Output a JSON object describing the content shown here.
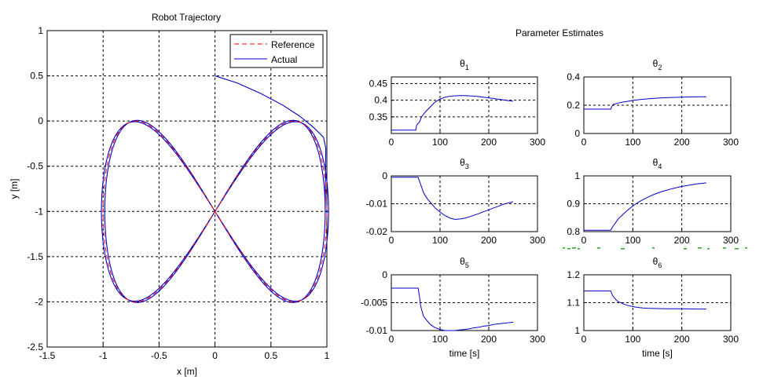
{
  "main_title": "Robot Trajectory",
  "params_title": "Parameter Estimates",
  "colors": {
    "reference": "#ff0000",
    "actual": "#0000cc",
    "axes": "#000000",
    "grid": "#000000",
    "speckle": "#22aa22"
  },
  "chart_data": [
    {
      "id": "trajectory",
      "type": "line",
      "title": "Robot Trajectory",
      "xlabel": "x [m]",
      "ylabel": "y [m]",
      "xlim": [
        -1.5,
        1
      ],
      "ylim": [
        -2.5,
        1
      ],
      "xticks": [
        -1.5,
        -1,
        -0.5,
        0,
        0.5,
        1
      ],
      "xtick_labels": [
        "-1.5",
        "-1",
        "-0.5",
        "0",
        "0.5",
        "1"
      ],
      "yticks": [
        -2.5,
        -2,
        -1.5,
        -1,
        -0.5,
        0,
        0.5,
        1
      ],
      "ytick_labels": [
        "-2.5",
        "-2",
        "-1.5",
        "-1",
        "-0.5",
        "0",
        "0.5",
        "1"
      ],
      "grid": true,
      "legend": {
        "position": "top-right",
        "entries": [
          "Reference",
          "Actual"
        ]
      },
      "series": [
        {
          "name": "Reference",
          "style": "dashed",
          "shape": "figure-eight centered at (0,-1), x amplitude 1, y amplitude 1"
        },
        {
          "name": "Actual",
          "style": "solid",
          "start": [
            0,
            0.5
          ],
          "shape": "converges onto the reference figure-eight near (1,-0.2)"
        }
      ]
    },
    {
      "id": "theta1",
      "title": "θ",
      "title_sub": "1",
      "type": "line",
      "xlim": [
        0,
        300
      ],
      "ylim": [
        0.3,
        0.47
      ],
      "xticks": [
        0,
        100,
        200,
        300
      ],
      "xtick_labels": [
        "0",
        "100",
        "200",
        "300"
      ],
      "yticks": [
        0.35,
        0.4,
        0.45
      ],
      "ytick_labels": [
        "0.35",
        "0.4",
        "0.45"
      ],
      "xlabel": "",
      "series": [
        {
          "x": [
            0,
            50,
            52,
            58,
            62,
            70,
            80,
            90,
            100,
            110,
            120,
            130,
            140,
            150,
            160,
            170,
            180,
            190,
            200,
            220,
            240,
            250
          ],
          "y": [
            0.31,
            0.31,
            0.325,
            0.335,
            0.35,
            0.365,
            0.38,
            0.395,
            0.403,
            0.409,
            0.412,
            0.413,
            0.414,
            0.414,
            0.413,
            0.412,
            0.411,
            0.409,
            0.407,
            0.403,
            0.399,
            0.397
          ]
        }
      ]
    },
    {
      "id": "theta2",
      "title": "θ",
      "title_sub": "2",
      "type": "line",
      "xlim": [
        0,
        300
      ],
      "ylim": [
        0,
        0.4
      ],
      "xticks": [
        0,
        100,
        200,
        300
      ],
      "xtick_labels": [
        "0",
        "100",
        "200",
        "300"
      ],
      "yticks": [
        0,
        0.2,
        0.4
      ],
      "ytick_labels": [
        "0",
        "0.2",
        "0.4"
      ],
      "xlabel": "",
      "series": [
        {
          "x": [
            0,
            55,
            57,
            60,
            70,
            80,
            90,
            100,
            120,
            140,
            160,
            180,
            200,
            220,
            250
          ],
          "y": [
            0.172,
            0.172,
            0.19,
            0.205,
            0.215,
            0.222,
            0.228,
            0.234,
            0.242,
            0.248,
            0.252,
            0.255,
            0.257,
            0.259,
            0.26
          ]
        }
      ]
    },
    {
      "id": "theta3",
      "title": "θ",
      "title_sub": "3",
      "type": "line",
      "xlim": [
        0,
        300
      ],
      "ylim": [
        -0.02,
        0
      ],
      "xticks": [
        0,
        100,
        200,
        300
      ],
      "xtick_labels": [
        "0",
        "100",
        "200",
        "300"
      ],
      "yticks": [
        -0.02,
        -0.01,
        0
      ],
      "ytick_labels": [
        "-0.02",
        "-0.01",
        "0"
      ],
      "xlabel": "",
      "series": [
        {
          "x": [
            0,
            55,
            58,
            62,
            66,
            70,
            75,
            80,
            90,
            100,
            110,
            120,
            130,
            140,
            150,
            160,
            170,
            180,
            190,
            200,
            210,
            220,
            230,
            240,
            250
          ],
          "y": [
            -0.0005,
            -0.0005,
            -0.002,
            -0.004,
            -0.006,
            -0.0072,
            -0.0085,
            -0.0095,
            -0.0115,
            -0.013,
            -0.0142,
            -0.0151,
            -0.0156,
            -0.0155,
            -0.0152,
            -0.0147,
            -0.0141,
            -0.0135,
            -0.0128,
            -0.0122,
            -0.0115,
            -0.0109,
            -0.0102,
            -0.0097,
            -0.0093
          ]
        }
      ]
    },
    {
      "id": "theta4",
      "title": "θ",
      "title_sub": "4",
      "type": "line",
      "xlim": [
        0,
        300
      ],
      "ylim": [
        0.8,
        1
      ],
      "xticks": [
        0,
        100,
        200,
        300
      ],
      "xtick_labels": [
        "0",
        "100",
        "200",
        "300"
      ],
      "yticks": [
        0.8,
        0.9,
        1
      ],
      "ytick_labels": [
        "0.8",
        "0.9",
        "1"
      ],
      "xlabel": "",
      "series": [
        {
          "x": [
            0,
            55,
            58,
            62,
            66,
            70,
            80,
            90,
            100,
            110,
            120,
            130,
            140,
            150,
            160,
            170,
            180,
            190,
            200,
            210,
            220,
            230,
            240,
            250
          ],
          "y": [
            0.805,
            0.805,
            0.815,
            0.825,
            0.835,
            0.845,
            0.862,
            0.878,
            0.892,
            0.904,
            0.914,
            0.923,
            0.931,
            0.938,
            0.944,
            0.949,
            0.954,
            0.958,
            0.962,
            0.965,
            0.968,
            0.971,
            0.973,
            0.975
          ]
        }
      ]
    },
    {
      "id": "theta5",
      "title": "θ",
      "title_sub": "5",
      "type": "line",
      "xlim": [
        0,
        300
      ],
      "ylim": [
        -0.01,
        0
      ],
      "xticks": [
        0,
        100,
        200,
        300
      ],
      "xtick_labels": [
        "0",
        "100",
        "200",
        "300"
      ],
      "yticks": [
        -0.01,
        -0.005,
        0
      ],
      "ytick_labels": [
        "-0.01",
        "-0.005",
        "0"
      ],
      "xlabel": "time [s]",
      "series": [
        {
          "x": [
            0,
            55,
            58,
            60,
            63,
            66,
            70,
            75,
            80,
            90,
            100,
            110,
            120,
            130,
            140,
            150,
            160,
            170,
            180,
            190,
            200,
            210,
            220,
            230,
            240,
            250
          ],
          "y": [
            -0.0024,
            -0.0024,
            -0.004,
            -0.0055,
            -0.0065,
            -0.0074,
            -0.0079,
            -0.0084,
            -0.0089,
            -0.0095,
            -0.0098,
            -0.01,
            -0.01,
            -0.01,
            -0.0099,
            -0.0098,
            -0.0097,
            -0.0095,
            -0.0094,
            -0.0092,
            -0.0091,
            -0.0089,
            -0.0088,
            -0.0087,
            -0.0086,
            -0.0085
          ]
        }
      ]
    },
    {
      "id": "theta6",
      "title": "θ",
      "title_sub": "6",
      "type": "line",
      "xlim": [
        0,
        300
      ],
      "ylim": [
        1,
        1.2
      ],
      "xticks": [
        0,
        100,
        200,
        300
      ],
      "xtick_labels": [
        "0",
        "100",
        "200",
        "300"
      ],
      "yticks": [
        1,
        1.1,
        1.2
      ],
      "ytick_labels": [
        "1",
        "1.1",
        "1.2"
      ],
      "xlabel": "time [s]",
      "series": [
        {
          "x": [
            0,
            55,
            58,
            62,
            66,
            70,
            80,
            90,
            100,
            110,
            120,
            130,
            150,
            170,
            200,
            230,
            250
          ],
          "y": [
            1.142,
            1.142,
            1.128,
            1.118,
            1.11,
            1.104,
            1.096,
            1.09,
            1.086,
            1.083,
            1.081,
            1.08,
            1.079,
            1.078,
            1.078,
            1.077,
            1.077
          ]
        }
      ]
    }
  ]
}
